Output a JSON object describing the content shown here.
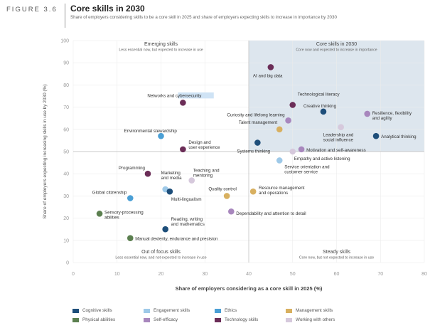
{
  "figure_label": "FIGURE 3.6",
  "title": "Core skills in 2030",
  "subtitle": "Share of employers considering skills to be a core skill in 2025 and share of employers expecting skills to increase in importance by 2030",
  "colors": {
    "Cognitive skills": "#1d4e7a",
    "Engagement skills": "#9ec9e8",
    "Ethics": "#4a9fd5",
    "Management skills": "#d8b060",
    "Physical abilities": "#5b7f4f",
    "Self-efficacy": "#a887bd",
    "Technology skills": "#6b2d57",
    "Working with others": "#d6c9dc"
  },
  "chart_data": {
    "type": "scatter",
    "title": "Core skills in 2030",
    "xlabel": "Share of employers considering as a core skill in 2025 (%)",
    "ylabel": "Share of employers expecting increasing skills in use by 2030 (%)",
    "xlim": [
      0,
      80
    ],
    "ylim": [
      0,
      100
    ],
    "xticks": [
      "0",
      "10",
      "20",
      "30",
      "40",
      "50",
      "60",
      "70",
      "80"
    ],
    "yticks": [
      "0",
      "10",
      "20",
      "30",
      "40",
      "50",
      "60",
      "70",
      "80",
      "90",
      "100"
    ],
    "quadrants": [
      {
        "title": "Emerging skills",
        "subtitle": "Less essential now, but expected to increase in use",
        "position": "top-left"
      },
      {
        "title": "Core skills in 2030",
        "subtitle": "Core now and expected to increase in importance",
        "position": "top-right"
      },
      {
        "title": "Out of focus skills",
        "subtitle": "Less essential now, and not expected to increase in use",
        "position": "bottom-left"
      },
      {
        "title": "Steady skills",
        "subtitle": "Core now, but not expected to increase in use",
        "position": "bottom-right"
      }
    ],
    "legend": [
      "Cognitive skills",
      "Engagement skills",
      "Ethics",
      "Management skills",
      "Physical abilities",
      "Self-efficacy",
      "Technology skills",
      "Working with others"
    ],
    "points": [
      {
        "label": "AI and big data",
        "category": "Technology skills",
        "x": 45,
        "y": 88
      },
      {
        "label": "Technological literacy",
        "category": "Technology skills",
        "x": 50,
        "y": 71
      },
      {
        "label": "Networks and cybersecurity",
        "category": "Technology skills",
        "x": 25,
        "y": 72
      },
      {
        "label": "Creative thinking",
        "category": "Cognitive skills",
        "x": 57,
        "y": 68
      },
      {
        "label": "Resilience, flexibility and agility",
        "category": "Self-efficacy",
        "x": 67,
        "y": 67
      },
      {
        "label": "Curiosity and lifelong learning",
        "category": "Self-efficacy",
        "x": 49,
        "y": 64
      },
      {
        "label": "Talent management",
        "category": "Management skills",
        "x": 47,
        "y": 60
      },
      {
        "label": "Leadership and social influence",
        "category": "Working with others",
        "x": 61,
        "y": 61
      },
      {
        "label": "Analytical thinking",
        "category": "Cognitive skills",
        "x": 69,
        "y": 57
      },
      {
        "label": "Environmental stewardship",
        "category": "Ethics",
        "x": 20,
        "y": 57
      },
      {
        "label": "Systems thinking",
        "category": "Cognitive skills",
        "x": 42,
        "y": 54
      },
      {
        "label": "Design and user experience",
        "category": "Technology skills",
        "x": 25,
        "y": 51
      },
      {
        "label": "Motivation and self-awareness",
        "category": "Self-efficacy",
        "x": 52,
        "y": 51
      },
      {
        "label": "Empathy and active listening",
        "category": "Working with others",
        "x": 50,
        "y": 50
      },
      {
        "label": "Service orientation and customer service",
        "category": "Engagement skills",
        "x": 47,
        "y": 46
      },
      {
        "label": "Programming",
        "category": "Technology skills",
        "x": 17,
        "y": 40
      },
      {
        "label": "Marketing and media",
        "category": "Engagement skills",
        "x": 21,
        "y": 33
      },
      {
        "label": "Teaching and mentoring",
        "category": "Working with others",
        "x": 27,
        "y": 37
      },
      {
        "label": "Global citizenship",
        "category": "Ethics",
        "x": 13,
        "y": 29
      },
      {
        "label": "Multi-lingualism",
        "category": "Cognitive skills",
        "x": 22,
        "y": 32
      },
      {
        "label": "Quality control",
        "category": "Management skills",
        "x": 35,
        "y": 30
      },
      {
        "label": "Resource management and operations",
        "category": "Management skills",
        "x": 41,
        "y": 32
      },
      {
        "label": "Dependability and attention to detail",
        "category": "Self-efficacy",
        "x": 36,
        "y": 23
      },
      {
        "label": "Sensory-processing abilities",
        "category": "Physical abilities",
        "x": 6,
        "y": 22
      },
      {
        "label": "Reading, writing and mathematics",
        "category": "Cognitive skills",
        "x": 21,
        "y": 15
      },
      {
        "label": "Manual dexterity, endurance and precision",
        "category": "Physical abilities",
        "x": 13,
        "y": 11
      }
    ]
  }
}
